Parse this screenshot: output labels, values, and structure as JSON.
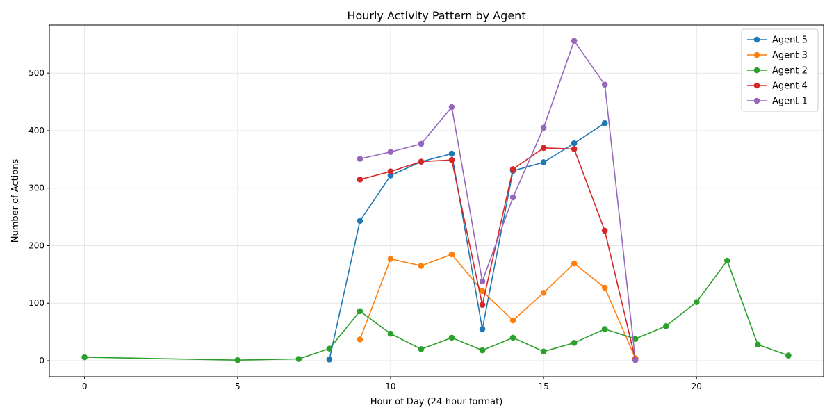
{
  "chart_data": {
    "type": "line",
    "title": "Hourly Activity Pattern by Agent",
    "xlabel": "Hour of Day (24-hour format)",
    "ylabel": "Number of Actions",
    "xlim": [
      -1.15,
      24.15
    ],
    "ylim": [
      -27.8,
      583.6
    ],
    "xticks": [
      0,
      5,
      10,
      15,
      20
    ],
    "yticks": [
      0,
      100,
      200,
      300,
      400,
      500
    ],
    "grid": true,
    "legend_position": "top-right",
    "series": [
      {
        "name": "Agent 5",
        "color": "#1f77b4",
        "x": [
          8,
          9,
          10,
          11,
          12,
          13,
          14,
          15,
          16,
          17
        ],
        "y": [
          2,
          243,
          322,
          346,
          360,
          55,
          330,
          345,
          378,
          413
        ]
      },
      {
        "name": "Agent 3",
        "color": "#ff7f0e",
        "x": [
          9,
          10,
          11,
          12,
          13,
          14,
          15,
          16,
          17,
          18
        ],
        "y": [
          37,
          177,
          165,
          185,
          121,
          70,
          118,
          169,
          127,
          4
        ]
      },
      {
        "name": "Agent 2",
        "color": "#2ca02c",
        "x": [
          0,
          5,
          7,
          8,
          9,
          10,
          11,
          12,
          13,
          14,
          15,
          16,
          17,
          18,
          19,
          20,
          21,
          22,
          23
        ],
        "y": [
          6,
          1,
          3,
          21,
          86,
          47,
          20,
          40,
          18,
          40,
          16,
          31,
          55,
          38,
          60,
          102,
          174,
          28,
          9
        ]
      },
      {
        "name": "Agent 4",
        "color": "#d62728",
        "x": [
          9,
          10,
          11,
          12,
          13,
          14,
          15,
          16,
          17,
          18
        ],
        "y": [
          315,
          329,
          346,
          349,
          97,
          333,
          370,
          368,
          226,
          2
        ]
      },
      {
        "name": "Agent 1",
        "color": "#9467bd",
        "x": [
          9,
          10,
          11,
          12,
          13,
          14,
          15,
          16,
          17,
          18
        ],
        "y": [
          351,
          363,
          377,
          441,
          138,
          284,
          405,
          556,
          480,
          1
        ]
      }
    ]
  }
}
